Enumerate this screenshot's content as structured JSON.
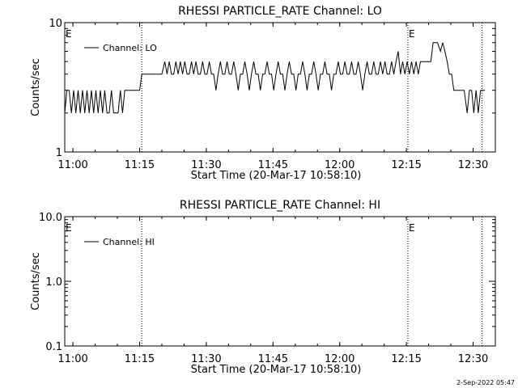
{
  "footer": {
    "timestamp": "2-Sep-2022 05:47"
  },
  "chart_data": [
    {
      "type": "line",
      "title": "RHESSI PARTICLE_RATE Channel: LO",
      "xlabel": "Start Time (20-Mar-17 10:58:10)",
      "ylabel": "Counts/sec",
      "yscale": "log",
      "ylim": [
        1,
        10
      ],
      "xlim": [
        "10:58:10",
        "12:35:00"
      ],
      "xticks": [
        "11:00",
        "11:15",
        "11:30",
        "11:45",
        "12:00",
        "12:15",
        "12:30"
      ],
      "yticks": [
        "1",
        "10"
      ],
      "legend": {
        "placement": "top-left",
        "entries": [
          "Channel: LO"
        ]
      },
      "markers": [
        {
          "time": "11:15:30",
          "label": ""
        },
        {
          "time": "12:15:20",
          "label": "E"
        },
        {
          "time": "12:32:00",
          "label": ""
        }
      ],
      "left_marker_label": "E",
      "series": [
        {
          "name": "Channel: LO",
          "color": "#000000",
          "points": [
            [
              "10:58:10",
              2
            ],
            [
              "10:58:40",
              3
            ],
            [
              "10:59:10",
              3
            ],
            [
              "10:59:40",
              2
            ],
            [
              "11:00:10",
              3
            ],
            [
              "11:00:40",
              2
            ],
            [
              "11:01:10",
              3
            ],
            [
              "11:01:40",
              2
            ],
            [
              "11:02:10",
              3
            ],
            [
              "11:02:40",
              2
            ],
            [
              "11:03:10",
              3
            ],
            [
              "11:03:40",
              2
            ],
            [
              "11:04:10",
              3
            ],
            [
              "11:04:40",
              2
            ],
            [
              "11:05:10",
              3
            ],
            [
              "11:05:40",
              2
            ],
            [
              "11:06:10",
              3
            ],
            [
              "11:06:40",
              2
            ],
            [
              "11:07:10",
              3
            ],
            [
              "11:07:40",
              2
            ],
            [
              "11:08:10",
              2
            ],
            [
              "11:08:40",
              3
            ],
            [
              "11:09:10",
              2
            ],
            [
              "11:09:40",
              2
            ],
            [
              "11:10:10",
              2
            ],
            [
              "11:10:40",
              3
            ],
            [
              "11:11:10",
              2
            ],
            [
              "11:11:40",
              3
            ],
            [
              "11:12:10",
              3
            ],
            [
              "11:13:00",
              3
            ],
            [
              "11:14:00",
              3
            ],
            [
              "11:15:00",
              3
            ],
            [
              "11:15:30",
              4
            ],
            [
              "11:17:00",
              4
            ],
            [
              "11:19:00",
              4
            ],
            [
              "11:20:00",
              4
            ],
            [
              "11:20:40",
              5
            ],
            [
              "11:21:10",
              4
            ],
            [
              "11:21:40",
              5
            ],
            [
              "11:22:10",
              4
            ],
            [
              "11:22:40",
              4
            ],
            [
              "11:23:10",
              5
            ],
            [
              "11:23:40",
              4
            ],
            [
              "11:24:10",
              5
            ],
            [
              "11:24:40",
              4
            ],
            [
              "11:25:10",
              5
            ],
            [
              "11:25:40",
              4
            ],
            [
              "11:26:10",
              4
            ],
            [
              "11:26:40",
              5
            ],
            [
              "11:27:10",
              4
            ],
            [
              "11:27:40",
              5
            ],
            [
              "11:28:10",
              4
            ],
            [
              "11:28:40",
              4
            ],
            [
              "11:29:10",
              5
            ],
            [
              "11:29:40",
              4
            ],
            [
              "11:30:10",
              4
            ],
            [
              "11:30:40",
              5
            ],
            [
              "11:31:10",
              4
            ],
            [
              "11:31:40",
              4
            ],
            [
              "11:32:10",
              3
            ],
            [
              "11:32:40",
              4
            ],
            [
              "11:33:10",
              5
            ],
            [
              "11:33:40",
              4
            ],
            [
              "11:34:10",
              4
            ],
            [
              "11:34:40",
              5
            ],
            [
              "11:35:10",
              4
            ],
            [
              "11:35:40",
              4
            ],
            [
              "11:36:10",
              5
            ],
            [
              "11:36:40",
              4
            ],
            [
              "11:37:10",
              3
            ],
            [
              "11:37:40",
              4
            ],
            [
              "11:38:10",
              4
            ],
            [
              "11:38:40",
              5
            ],
            [
              "11:39:10",
              4
            ],
            [
              "11:39:40",
              3
            ],
            [
              "11:40:10",
              4
            ],
            [
              "11:40:40",
              5
            ],
            [
              "11:41:10",
              4
            ],
            [
              "11:41:40",
              4
            ],
            [
              "11:42:10",
              3
            ],
            [
              "11:42:40",
              4
            ],
            [
              "11:43:10",
              4
            ],
            [
              "11:43:40",
              5
            ],
            [
              "11:44:10",
              4
            ],
            [
              "11:44:40",
              4
            ],
            [
              "11:45:10",
              3
            ],
            [
              "11:45:40",
              4
            ],
            [
              "11:46:10",
              5
            ],
            [
              "11:46:40",
              4
            ],
            [
              "11:47:10",
              4
            ],
            [
              "11:47:40",
              3
            ],
            [
              "11:48:10",
              4
            ],
            [
              "11:48:40",
              5
            ],
            [
              "11:49:10",
              4
            ],
            [
              "11:49:40",
              4
            ],
            [
              "11:50:10",
              3
            ],
            [
              "11:50:40",
              4
            ],
            [
              "11:51:10",
              4
            ],
            [
              "11:51:40",
              5
            ],
            [
              "11:52:10",
              4
            ],
            [
              "11:52:40",
              3
            ],
            [
              "11:53:10",
              4
            ],
            [
              "11:53:40",
              4
            ],
            [
              "11:54:10",
              5
            ],
            [
              "11:54:40",
              4
            ],
            [
              "11:55:10",
              3
            ],
            [
              "11:55:40",
              4
            ],
            [
              "11:56:10",
              4
            ],
            [
              "11:56:40",
              5
            ],
            [
              "11:57:10",
              4
            ],
            [
              "11:57:40",
              4
            ],
            [
              "11:58:10",
              3
            ],
            [
              "11:58:40",
              4
            ],
            [
              "11:59:10",
              4
            ],
            [
              "11:59:40",
              5
            ],
            [
              "12:00:10",
              4
            ],
            [
              "12:00:40",
              4
            ],
            [
              "12:01:10",
              5
            ],
            [
              "12:01:40",
              4
            ],
            [
              "12:02:10",
              4
            ],
            [
              "12:02:40",
              5
            ],
            [
              "12:03:10",
              4
            ],
            [
              "12:03:40",
              4
            ],
            [
              "12:04:10",
              5
            ],
            [
              "12:04:40",
              4
            ],
            [
              "12:05:10",
              3
            ],
            [
              "12:05:40",
              4
            ],
            [
              "12:06:10",
              5
            ],
            [
              "12:06:40",
              4
            ],
            [
              "12:07:10",
              4
            ],
            [
              "12:07:40",
              5
            ],
            [
              "12:08:10",
              4
            ],
            [
              "12:08:40",
              4
            ],
            [
              "12:09:10",
              5
            ],
            [
              "12:09:40",
              4
            ],
            [
              "12:10:10",
              5
            ],
            [
              "12:10:40",
              4
            ],
            [
              "12:11:10",
              4
            ],
            [
              "12:11:40",
              5
            ],
            [
              "12:12:10",
              4
            ],
            [
              "12:12:40",
              5
            ],
            [
              "12:13:10",
              6
            ],
            [
              "12:13:40",
              4
            ],
            [
              "12:14:10",
              5
            ],
            [
              "12:14:40",
              4
            ],
            [
              "12:15:10",
              5
            ],
            [
              "12:15:40",
              4
            ],
            [
              "12:16:10",
              5
            ],
            [
              "12:16:40",
              4
            ],
            [
              "12:17:10",
              5
            ],
            [
              "12:17:40",
              4
            ],
            [
              "12:18:10",
              5
            ],
            [
              "12:19:00",
              5
            ],
            [
              "12:20:00",
              5
            ],
            [
              "12:20:30",
              5
            ],
            [
              "12:21:00",
              7
            ],
            [
              "12:22:00",
              7
            ],
            [
              "12:22:40",
              6
            ],
            [
              "12:23:10",
              7
            ],
            [
              "12:23:40",
              6
            ],
            [
              "12:24:10",
              5
            ],
            [
              "12:24:40",
              4
            ],
            [
              "12:25:10",
              4
            ],
            [
              "12:25:40",
              3
            ],
            [
              "12:26:10",
              3
            ],
            [
              "12:27:00",
              3
            ],
            [
              "12:28:00",
              3
            ],
            [
              "12:28:40",
              2
            ],
            [
              "12:29:10",
              3
            ],
            [
              "12:29:40",
              3
            ],
            [
              "12:30:10",
              2
            ],
            [
              "12:30:40",
              3
            ],
            [
              "12:31:10",
              2
            ],
            [
              "12:31:40",
              3
            ],
            [
              "12:32:10",
              3
            ],
            [
              "12:32:40",
              3
            ]
          ]
        }
      ]
    },
    {
      "type": "line",
      "title": "RHESSI PARTICLE_RATE Channel: HI",
      "xlabel": "Start Time (20-Mar-17 10:58:10)",
      "ylabel": "Counts/sec",
      "yscale": "log",
      "ylim": [
        0.1,
        10
      ],
      "xlim": [
        "10:58:10",
        "12:35:00"
      ],
      "xticks": [
        "11:00",
        "11:15",
        "11:30",
        "11:45",
        "12:00",
        "12:15",
        "12:30"
      ],
      "yticks": [
        "0.1",
        "1.0",
        "10.0"
      ],
      "legend": {
        "placement": "top-left",
        "entries": [
          "Channel: HI"
        ]
      },
      "markers": [
        {
          "time": "11:15:30",
          "label": ""
        },
        {
          "time": "12:15:20",
          "label": "E"
        },
        {
          "time": "12:32:00",
          "label": ""
        }
      ],
      "left_marker_label": "E",
      "series": [
        {
          "name": "Channel: HI",
          "color": "#000000",
          "points": []
        }
      ]
    }
  ]
}
